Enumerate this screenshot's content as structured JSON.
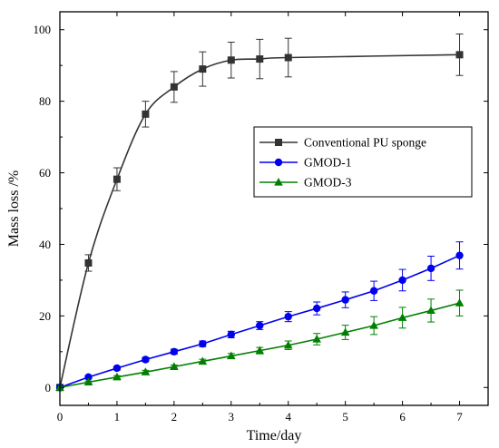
{
  "chart_data": {
    "type": "line",
    "title": "",
    "xlabel": "Time/day",
    "ylabel": "Mass loss /%",
    "xlim": [
      0,
      7.5
    ],
    "ylim": [
      -5,
      105
    ],
    "xticks": [
      0,
      1,
      2,
      3,
      4,
      5,
      6,
      7
    ],
    "yticks": [
      0,
      20,
      40,
      60,
      80,
      100
    ],
    "grid": false,
    "legend_position": "right",
    "series": [
      {
        "name": "Conventional PU sponge",
        "color": "#333333",
        "marker": "square",
        "points": [
          {
            "x": 0,
            "y": 0,
            "err": 0
          },
          {
            "x": 0.5,
            "y": 34.8,
            "err": 2.3
          },
          {
            "x": 1,
            "y": 58.2,
            "err": 3.2
          },
          {
            "x": 1.5,
            "y": 76.4,
            "err": 3.6
          },
          {
            "x": 2,
            "y": 84.0,
            "err": 4.3
          },
          {
            "x": 2.5,
            "y": 89.0,
            "err": 4.8
          },
          {
            "x": 3,
            "y": 91.5,
            "err": 5.0
          },
          {
            "x": 3.5,
            "y": 91.8,
            "err": 5.5
          },
          {
            "x": 4,
            "y": 92.2,
            "err": 5.4
          },
          {
            "x": 7,
            "y": 93.0,
            "err": 5.8
          }
        ]
      },
      {
        "name": "GMOD-1",
        "color": "#0000ee",
        "marker": "circle",
        "points": [
          {
            "x": 0,
            "y": 0,
            "err": 0
          },
          {
            "x": 0.5,
            "y": 2.9,
            "err": 0.4
          },
          {
            "x": 1,
            "y": 5.4,
            "err": 0.5
          },
          {
            "x": 1.5,
            "y": 7.8,
            "err": 0.6
          },
          {
            "x": 2,
            "y": 10.0,
            "err": 0.7
          },
          {
            "x": 2.5,
            "y": 12.2,
            "err": 0.8
          },
          {
            "x": 3,
            "y": 14.8,
            "err": 0.9
          },
          {
            "x": 3.5,
            "y": 17.3,
            "err": 1.1
          },
          {
            "x": 4,
            "y": 19.8,
            "err": 1.4
          },
          {
            "x": 4.5,
            "y": 22.1,
            "err": 1.8
          },
          {
            "x": 5,
            "y": 24.5,
            "err": 2.2
          },
          {
            "x": 5.5,
            "y": 27.0,
            "err": 2.7
          },
          {
            "x": 6,
            "y": 30.0,
            "err": 3.0
          },
          {
            "x": 6.5,
            "y": 33.3,
            "err": 3.4
          },
          {
            "x": 7,
            "y": 36.9,
            "err": 3.8
          }
        ]
      },
      {
        "name": "GMOD-3",
        "color": "#008000",
        "marker": "triangle",
        "points": [
          {
            "x": 0,
            "y": 0,
            "err": 0
          },
          {
            "x": 0.5,
            "y": 1.5,
            "err": 0.3
          },
          {
            "x": 1,
            "y": 2.9,
            "err": 0.4
          },
          {
            "x": 1.5,
            "y": 4.3,
            "err": 0.5
          },
          {
            "x": 2,
            "y": 5.8,
            "err": 0.5
          },
          {
            "x": 2.5,
            "y": 7.3,
            "err": 0.6
          },
          {
            "x": 3,
            "y": 8.8,
            "err": 0.7
          },
          {
            "x": 3.5,
            "y": 10.3,
            "err": 0.9
          },
          {
            "x": 4,
            "y": 11.8,
            "err": 1.2
          },
          {
            "x": 4.5,
            "y": 13.5,
            "err": 1.6
          },
          {
            "x": 5,
            "y": 15.4,
            "err": 2.0
          },
          {
            "x": 5.5,
            "y": 17.3,
            "err": 2.5
          },
          {
            "x": 6,
            "y": 19.5,
            "err": 2.9
          },
          {
            "x": 6.5,
            "y": 21.5,
            "err": 3.2
          },
          {
            "x": 7,
            "y": 23.6,
            "err": 3.6
          }
        ]
      }
    ]
  }
}
